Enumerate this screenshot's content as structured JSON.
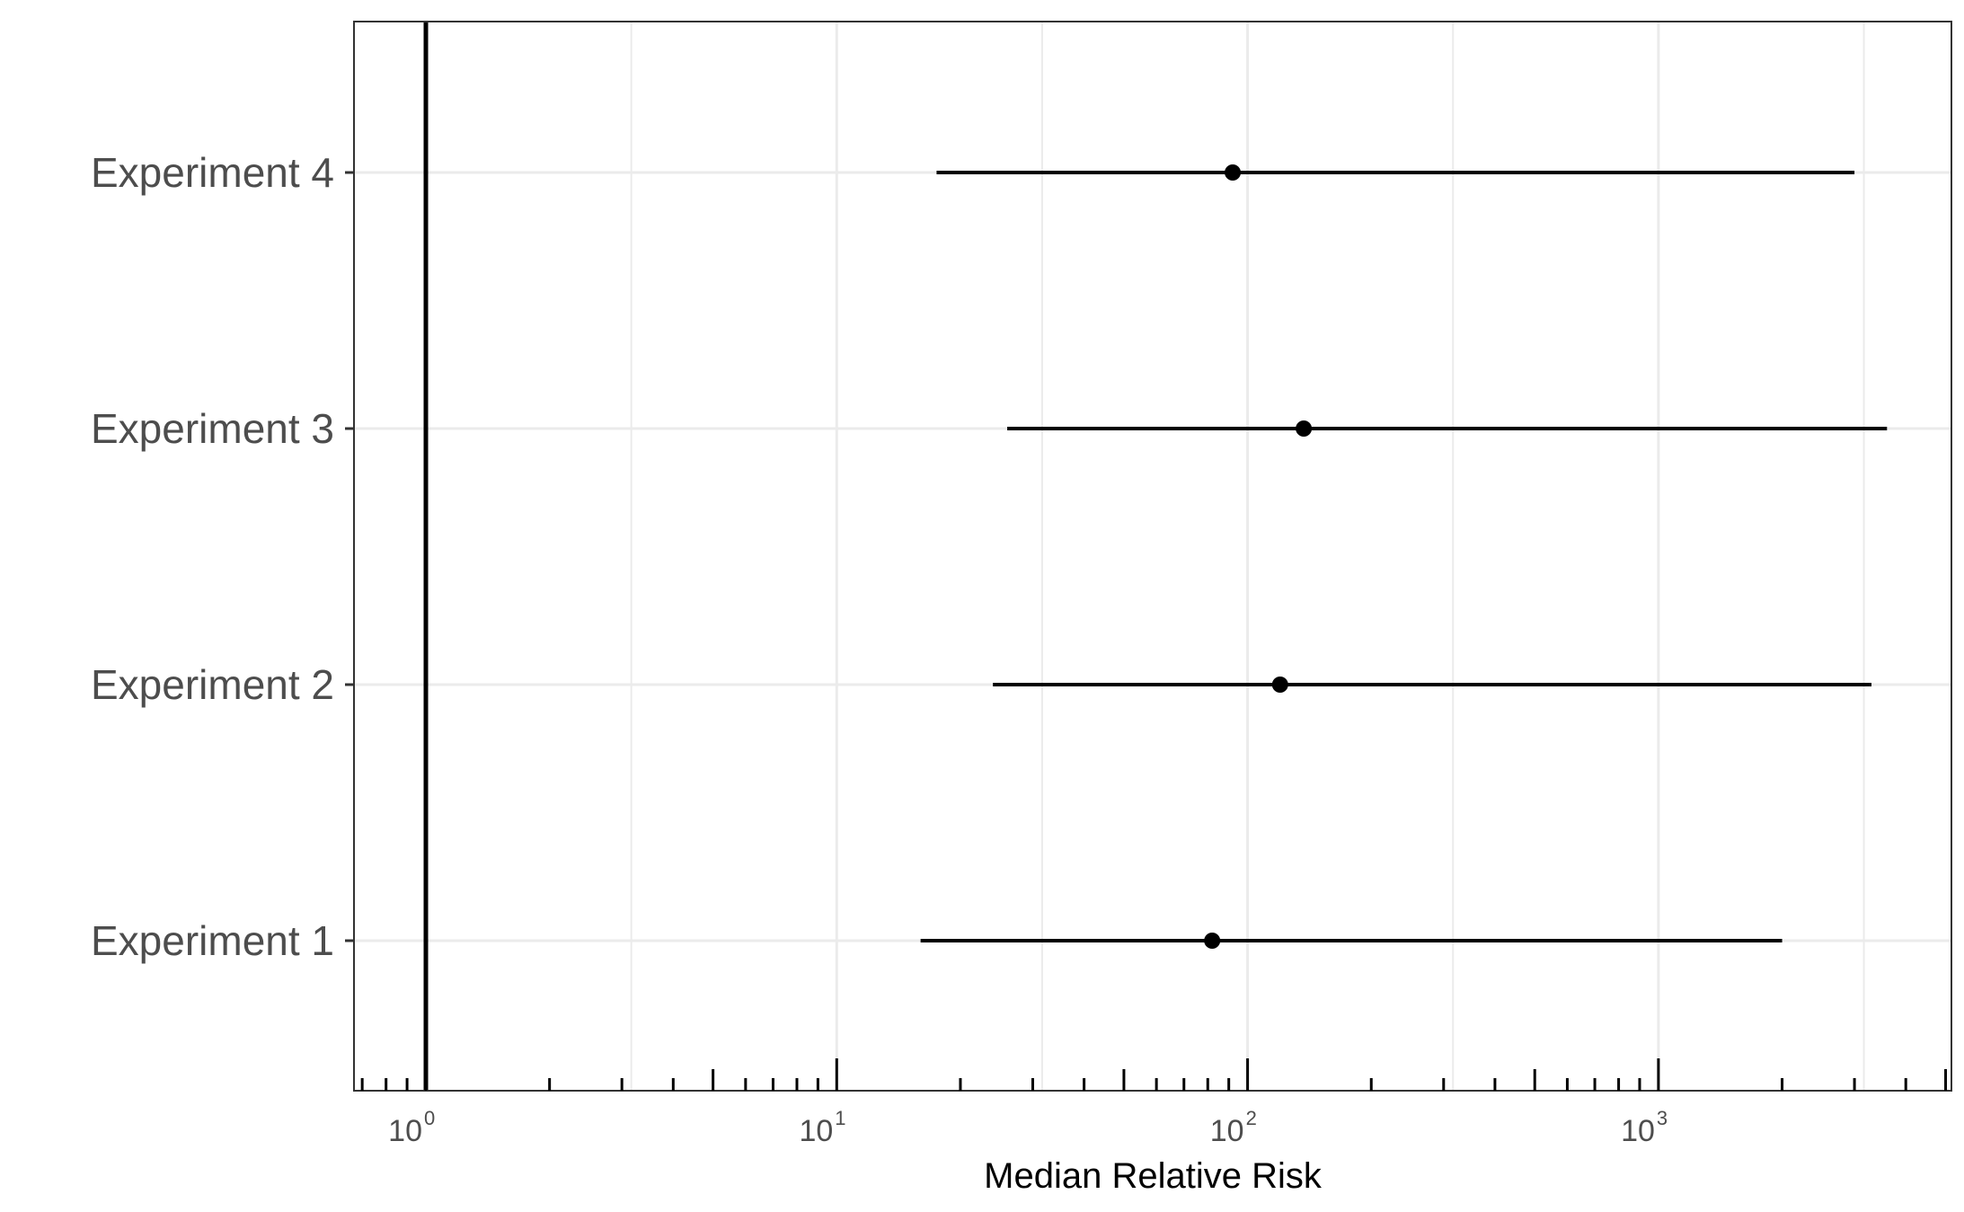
{
  "chart_data": {
    "type": "forest",
    "title": "",
    "xlabel": "Median Relative Risk",
    "ylabel": "",
    "x_scale": "log10",
    "xlim": [
      0.7,
      5000
    ],
    "x_ticks": [
      {
        "value": 1,
        "base": "10",
        "exponent": "0"
      },
      {
        "value": 10,
        "base": "10",
        "exponent": "1"
      },
      {
        "value": 100,
        "base": "10",
        "exponent": "2"
      },
      {
        "value": 1000,
        "base": "10",
        "exponent": "3"
      }
    ],
    "reference_line": 1,
    "grid": true,
    "categories": [
      "Experiment 1",
      "Experiment 2",
      "Experiment 3",
      "Experiment 4"
    ],
    "series": [
      {
        "name": "Experiment 1",
        "estimate": 82,
        "lower": 16,
        "upper": 2000
      },
      {
        "name": "Experiment 2",
        "estimate": 120,
        "lower": 24,
        "upper": 3300
      },
      {
        "name": "Experiment 3",
        "estimate": 137,
        "lower": 26,
        "upper": 3600
      },
      {
        "name": "Experiment 4",
        "estimate": 92,
        "lower": 17.5,
        "upper": 3000
      }
    ],
    "colors": {
      "marks": "#000000",
      "grid": "#ebebeb",
      "panel_border": "#333333",
      "text": "#4d4d4d"
    }
  }
}
